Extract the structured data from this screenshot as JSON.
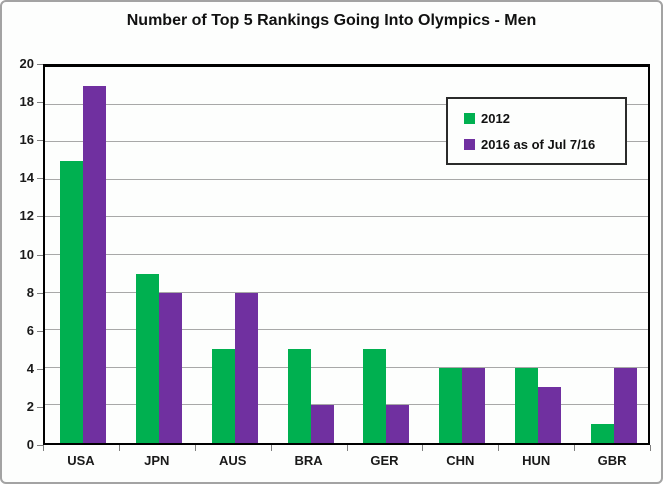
{
  "chart_data": {
    "type": "bar",
    "title": "Number of Top 5 Rankings Going Into Olympics - Men",
    "categories": [
      "USA",
      "JPN",
      "AUS",
      "BRA",
      "GER",
      "CHN",
      "HUN",
      "GBR"
    ],
    "series": [
      {
        "name": "2012",
        "color": "#00B050",
        "values": [
          15,
          9,
          5,
          5,
          5,
          4,
          4,
          1
        ]
      },
      {
        "name": "2016 as of Jul 7/16",
        "color": "#7030A0",
        "values": [
          19,
          8,
          8,
          2,
          2,
          4,
          3,
          4
        ]
      }
    ],
    "ylim": [
      0,
      20
    ],
    "ytick_step": 2,
    "yticks": [
      0,
      2,
      4,
      6,
      8,
      10,
      12,
      14,
      16,
      18,
      20
    ],
    "grid": true,
    "legend_position": "top-right-inside",
    "colors": {
      "grid": "#a8a8a8",
      "axis": "#000000",
      "frame_border": "#a3a3a3",
      "background": "#fdfefd"
    }
  }
}
